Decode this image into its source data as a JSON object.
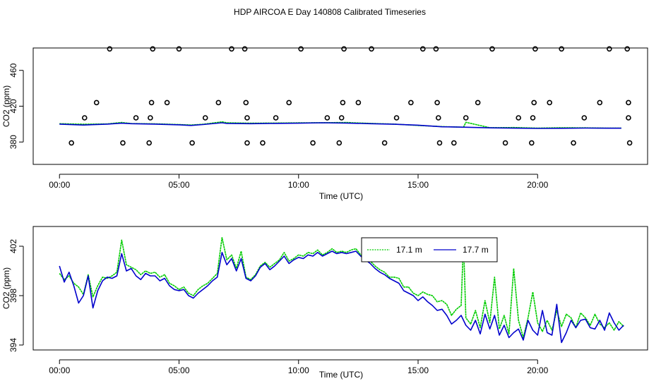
{
  "title": "HDP AIRCOA E  Day 140808  Calibrated Timeseries",
  "colors": {
    "green": "#00cc00",
    "blue": "#0000cc",
    "markers": "#000000"
  },
  "chart_data": [
    {
      "type": "line",
      "xlabel": "Time (UTC)",
      "ylabel": "CO2 (ppm)",
      "xlim": [
        -1.1,
        24.6
      ],
      "ylim": [
        355,
        485
      ],
      "xticks": [
        0,
        5,
        10,
        15,
        20
      ],
      "xtick_labels": [
        "00:00",
        "05:00",
        "10:00",
        "15:00",
        "20:00"
      ],
      "yticks": [
        380,
        420,
        460
      ],
      "ytick_labels": [
        "380",
        "420",
        "460"
      ],
      "grid": false,
      "markers": {
        "shape": "open-circle",
        "x": [
          0.5,
          2.65,
          3.75,
          5.55,
          7.85,
          8.5,
          10.6,
          11.7,
          13.6,
          15.9,
          16.5,
          18.65,
          19.75,
          21.5,
          23.85,
          1.05,
          3.2,
          3.8,
          6.1,
          7.85,
          9.05,
          11.2,
          11.8,
          14.1,
          15.85,
          17.0,
          19.2,
          19.8,
          21.95,
          23.8,
          1.55,
          3.85,
          4.5,
          6.65,
          7.8,
          9.6,
          11.85,
          12.5,
          14.7,
          15.8,
          17.5,
          19.85,
          20.5,
          22.6,
          23.8,
          2.1,
          3.9,
          5.0,
          7.2,
          7.75,
          10.1,
          11.9,
          13.05,
          15.2,
          15.75,
          18.1,
          19.9,
          21.0,
          23.0,
          23.75
        ],
        "y": [
          379,
          379,
          379,
          379,
          379,
          379,
          379,
          379,
          379,
          379,
          379,
          379,
          379,
          379,
          379,
          407,
          407,
          407,
          407,
          407,
          407,
          407,
          407,
          407,
          407,
          407,
          407,
          407,
          407,
          407,
          424,
          424,
          424,
          424,
          424,
          424,
          424,
          424,
          424,
          424,
          424,
          424,
          424,
          424,
          424,
          484,
          484,
          484,
          484,
          484,
          484,
          484,
          484,
          484,
          484,
          484,
          484,
          484,
          484,
          484
        ]
      },
      "series": [
        {
          "color": "#00cc00",
          "x": [
            0,
            1,
            2,
            2.6,
            3,
            4,
            5,
            5.5,
            6,
            6.8,
            7,
            8,
            9,
            10,
            11,
            12,
            13,
            14,
            15,
            16,
            16.9,
            17,
            18,
            19,
            20,
            21,
            22,
            23,
            23.5
          ],
          "y": [
            400.5,
            399.8,
            400.2,
            401.8,
            400.6,
            400.3,
            399.5,
            399.0,
            399.8,
            402.5,
            401.5,
            401.0,
            401.2,
            401.4,
            401.6,
            401.8,
            400.8,
            400.0,
            398.5,
            397.2,
            396.5,
            402.0,
            396.0,
            396.2,
            395.5,
            396.0,
            395.8,
            395.5,
            395.5
          ]
        },
        {
          "color": "#0000cc",
          "x": [
            0,
            1,
            2,
            2.6,
            3,
            4,
            5,
            5.5,
            6,
            6.8,
            7,
            8,
            9,
            10,
            11,
            12,
            13,
            14,
            15,
            16,
            17,
            18,
            19,
            20,
            21,
            22,
            23,
            23.5
          ],
          "y": [
            400.0,
            399.0,
            400.0,
            401.0,
            400.5,
            400.0,
            399.2,
            398.5,
            399.5,
            401.5,
            400.8,
            400.5,
            400.8,
            401.0,
            401.5,
            401.2,
            400.5,
            399.8,
            398.8,
            397.0,
            396.5,
            395.8,
            395.5,
            395.2,
            395.3,
            395.6,
            395.4,
            395.4
          ]
        }
      ]
    },
    {
      "type": "line",
      "xlabel": "Time (UTC)",
      "ylabel": "CO2 (ppm)",
      "xlim": [
        -1.1,
        24.6
      ],
      "ylim": [
        393.6,
        403.6
      ],
      "xticks": [
        0,
        5,
        10,
        15,
        20
      ],
      "xtick_labels": [
        "00:00",
        "05:00",
        "10:00",
        "15:00",
        "20:00"
      ],
      "yticks": [
        394,
        398,
        402
      ],
      "ytick_labels": [
        "394",
        "398",
        "402"
      ],
      "grid": false,
      "legend": {
        "placement": "top-right"
      },
      "series": [
        {
          "name": "17.1 m",
          "color": "#00cc00",
          "x": [
            0,
            0.2,
            0.4,
            0.6,
            0.8,
            1.0,
            1.2,
            1.4,
            1.6,
            1.8,
            2.0,
            2.2,
            2.4,
            2.6,
            2.8,
            3.0,
            3.2,
            3.4,
            3.6,
            3.8,
            4.0,
            4.2,
            4.4,
            4.6,
            4.8,
            5.0,
            5.2,
            5.4,
            5.6,
            5.8,
            6.0,
            6.2,
            6.4,
            6.6,
            6.8,
            7.0,
            7.2,
            7.4,
            7.6,
            7.8,
            8.0,
            8.2,
            8.4,
            8.6,
            8.8,
            9.0,
            9.2,
            9.4,
            9.6,
            9.8,
            10.0,
            10.2,
            10.4,
            10.6,
            10.8,
            11.0,
            11.2,
            11.4,
            11.6,
            11.8,
            12.0,
            12.2,
            12.4,
            12.6,
            12.8,
            13.0,
            13.2,
            13.4,
            13.6,
            13.8,
            14.0,
            14.2,
            14.4,
            14.6,
            14.8,
            15.0,
            15.2,
            15.4,
            15.6,
            15.8,
            16.0,
            16.2,
            16.4,
            16.6,
            16.8,
            16.9,
            17.0,
            17.2,
            17.4,
            17.6,
            17.8,
            18.0,
            18.2,
            18.4,
            18.6,
            18.8,
            19.0,
            19.2,
            19.4,
            19.6,
            19.8,
            20.0,
            20.2,
            20.4,
            20.6,
            20.8,
            21.0,
            21.2,
            21.4,
            21.6,
            21.8,
            22.0,
            22.2,
            22.4,
            22.6,
            22.8,
            23.0,
            23.2,
            23.4,
            23.6
          ],
          "y": [
            399.8,
            399.3,
            399.6,
            399.0,
            398.7,
            398.1,
            399.7,
            397.9,
            398.8,
            399.5,
            399.4,
            399.6,
            399.9,
            402.5,
            400.5,
            400.3,
            400.1,
            399.7,
            400.0,
            399.8,
            399.9,
            399.5,
            399.7,
            399.0,
            398.8,
            398.5,
            398.7,
            398.2,
            398.0,
            398.5,
            398.8,
            399.0,
            399.4,
            399.8,
            402.7,
            400.9,
            401.3,
            400.2,
            401.6,
            399.5,
            399.3,
            399.7,
            400.4,
            400.7,
            400.3,
            400.6,
            400.9,
            401.5,
            400.8,
            401.0,
            401.3,
            401.2,
            401.5,
            401.4,
            401.7,
            401.3,
            401.5,
            401.8,
            401.5,
            401.6,
            401.5,
            401.7,
            401.8,
            401.3,
            401.0,
            400.8,
            400.4,
            400.1,
            399.9,
            399.5,
            399.5,
            399.4,
            398.7,
            398.7,
            398.2,
            398.0,
            398.3,
            398.1,
            398.0,
            397.5,
            397.6,
            397.3,
            396.4,
            396.9,
            397.2,
            402.4,
            396.2,
            395.7,
            396.8,
            395.4,
            397.6,
            395.8,
            399.5,
            395.3,
            396.4,
            394.9,
            400.2,
            396.0,
            394.6,
            396.2,
            398.3,
            395.8,
            395.1,
            396.0,
            395.2,
            396.8,
            395.5,
            396.5,
            396.2,
            395.4,
            396.6,
            396.2,
            395.6,
            396.5,
            395.7,
            395.4,
            395.8,
            395.2,
            395.9,
            395.5
          ]
        },
        {
          "name": "17.7 m",
          "color": "#0000cc",
          "x": [
            0,
            0.2,
            0.4,
            0.6,
            0.8,
            1.0,
            1.2,
            1.4,
            1.6,
            1.8,
            2.0,
            2.2,
            2.4,
            2.6,
            2.8,
            3.0,
            3.2,
            3.4,
            3.6,
            3.8,
            4.0,
            4.2,
            4.4,
            4.6,
            4.8,
            5.0,
            5.2,
            5.4,
            5.6,
            5.8,
            6.0,
            6.2,
            6.4,
            6.6,
            6.8,
            7.0,
            7.2,
            7.4,
            7.6,
            7.8,
            8.0,
            8.2,
            8.4,
            8.6,
            8.8,
            9.0,
            9.2,
            9.4,
            9.6,
            9.8,
            10.0,
            10.2,
            10.4,
            10.6,
            10.8,
            11.0,
            11.2,
            11.4,
            11.6,
            11.8,
            12.0,
            12.2,
            12.4,
            12.6,
            12.8,
            13.0,
            13.2,
            13.4,
            13.6,
            13.8,
            14.0,
            14.2,
            14.4,
            14.6,
            14.8,
            15.0,
            15.2,
            15.4,
            15.6,
            15.8,
            16.0,
            16.2,
            16.4,
            16.6,
            16.8,
            17.0,
            17.2,
            17.4,
            17.6,
            17.8,
            18.0,
            18.2,
            18.4,
            18.6,
            18.8,
            19.0,
            19.2,
            19.4,
            19.6,
            19.8,
            20.0,
            20.2,
            20.4,
            20.6,
            20.8,
            21.0,
            21.2,
            21.4,
            21.6,
            21.8,
            22.0,
            22.2,
            22.4,
            22.6,
            22.8,
            23.0,
            23.2,
            23.4,
            23.6
          ],
          "y": [
            400.4,
            399.1,
            399.9,
            398.8,
            397.4,
            398.0,
            399.6,
            397.0,
            398.4,
            399.2,
            399.5,
            399.4,
            399.6,
            401.4,
            400.0,
            400.2,
            399.6,
            399.3,
            399.8,
            399.6,
            399.6,
            399.2,
            399.4,
            398.8,
            398.5,
            398.4,
            398.5,
            398.0,
            397.8,
            398.2,
            398.5,
            398.8,
            399.2,
            399.5,
            401.5,
            400.5,
            401.0,
            400.0,
            401.0,
            399.4,
            399.2,
            399.6,
            400.3,
            400.6,
            400.1,
            400.4,
            400.8,
            401.2,
            400.6,
            400.9,
            401.1,
            401.0,
            401.3,
            401.2,
            401.5,
            401.2,
            401.4,
            401.6,
            401.4,
            401.5,
            401.4,
            401.5,
            401.6,
            401.2,
            400.9,
            400.6,
            400.2,
            399.9,
            399.7,
            399.4,
            399.2,
            399.0,
            398.4,
            398.2,
            398.0,
            397.6,
            397.9,
            397.5,
            397.2,
            396.8,
            396.9,
            396.4,
            395.7,
            396.0,
            396.4,
            395.6,
            395.2,
            396.0,
            394.9,
            396.5,
            395.3,
            396.4,
            394.8,
            395.6,
            394.6,
            395.0,
            395.3,
            394.4,
            396.0,
            395.2,
            394.8,
            396.8,
            395.0,
            394.8,
            397.3,
            394.2,
            395.0,
            396.0,
            395.4,
            396.0,
            396.1,
            395.4,
            395.3,
            396.0,
            395.2,
            396.6,
            395.8,
            395.2,
            395.6
          ]
        }
      ]
    }
  ]
}
